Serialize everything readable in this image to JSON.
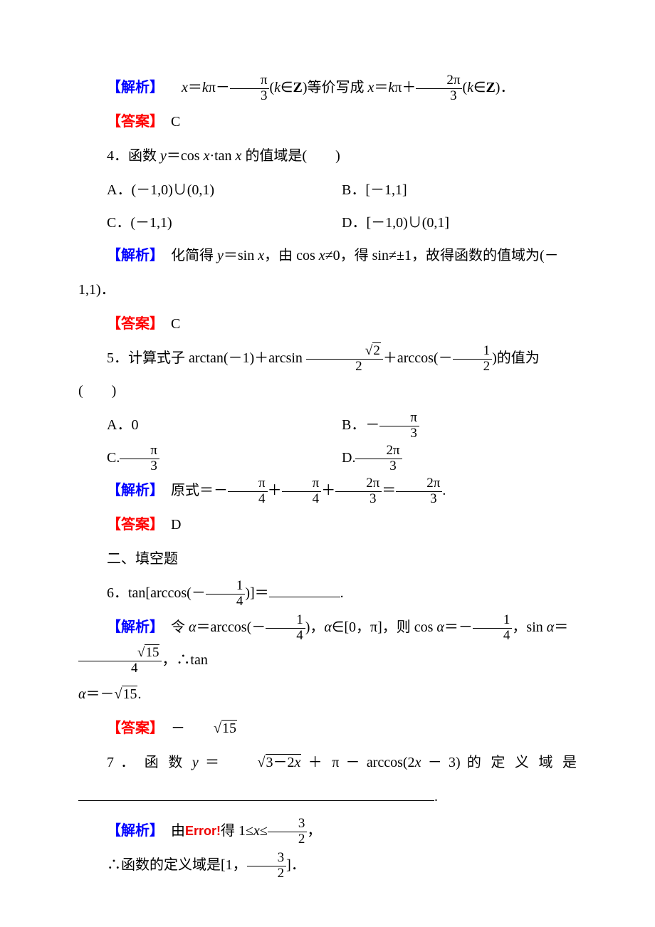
{
  "labels": {
    "analysis": "【解析】",
    "answer": "【答案】",
    "error": "Error!"
  },
  "line1": {
    "pre": "　",
    "mid1": "＝",
    "mid2": "π－",
    "paren1": "(",
    "in1": "∈",
    "set": "Z",
    "paren2": ")",
    "text1": "等价写成 ",
    "mid3": "＝",
    "mid4": "π＋",
    "paren3": "(",
    "in2": "∈",
    "paren4": ")．"
  },
  "vars": {
    "x": "x",
    "k": "k",
    "y": "y",
    "alpha": "α"
  },
  "fractions": {
    "pi_over_3_num": "π",
    "pi_over_3_den": "3",
    "two_pi_over_3_num": "2π",
    "two_pi_over_3_den": "3",
    "sqrt2_over_2_num_prefix": "",
    "sqrt2_val": "2",
    "sqrt2_over_2_den": "2",
    "half_num": "1",
    "half_den": "2",
    "pi_over_4_num": "π",
    "pi_over_4_den": "4",
    "quarter_num": "1",
    "quarter_den": "4",
    "sqrt15_val": "15",
    "sqrt15_over_4_den": "4",
    "three_half_num": "3",
    "three_half_den": "2"
  },
  "ans3": "　C",
  "q4": {
    "stem": "4．函数 ",
    "expr": "＝cos ",
    "mid": "·tan ",
    "tail": " 的值域是(　　)",
    "A": "A．(－1,0)∪(0,1)",
    "B": "B．[－1,1]",
    "C": "C．(－1,1)",
    "D": "D．[－1,0)∪(0,1]"
  },
  "sol4": {
    "text1": "　化简得 ",
    "eq": "＝sin ",
    "text2": "，由 cos ",
    "neq": "≠0，得 sin≠±1，故得函数的值域为(－",
    "tail": "1,1)．"
  },
  "ans4": "　C",
  "q5": {
    "stem": "5．计算式子 arctan(－1)＋arcsin ",
    "mid": "＋arccos(－",
    "tail": ")的值为(　　)",
    "A": "A．0",
    "B_prefix": "B．－",
    "C_prefix": "C.",
    "D_prefix": "D."
  },
  "sol5": {
    "text1": "　原式＝－",
    "plus": "＋",
    "eq": "＝",
    "period": "."
  },
  "ans5": "　D",
  "section2": "二、填空题",
  "q6": {
    "stem": "6．tan[arccos(－",
    "tail": ")]＝",
    "period": "."
  },
  "sol6": {
    "text1": "　令 ",
    "eq1": "＝arccos(－",
    "text2": ")，",
    "in": "∈[0，π]，则 cos ",
    "eq2": "＝－",
    "text3": "，sin ",
    "eq3": "＝",
    "text4": "，∴tan",
    "line2_pre": "",
    "line2_eq": "＝－",
    "line2_period": "."
  },
  "ans6_prefix": "　－",
  "q7": {
    "stem_spaced": "7 ． 函 数 ",
    "eq_spaced": " ＝ ",
    "sqrt_inner": "3－2",
    "mid_spaced1": " ＋ π － arccos(2",
    "mid_spaced2": " － 3) 的 定 义 域 是",
    "period": "."
  },
  "sol7": {
    "text1": "　由",
    "text2": "得 1≤",
    "leq": "≤",
    "comma": "，"
  },
  "sol7b": {
    "text1": "∴函数的定义域是[1，",
    "tail": "]．"
  }
}
